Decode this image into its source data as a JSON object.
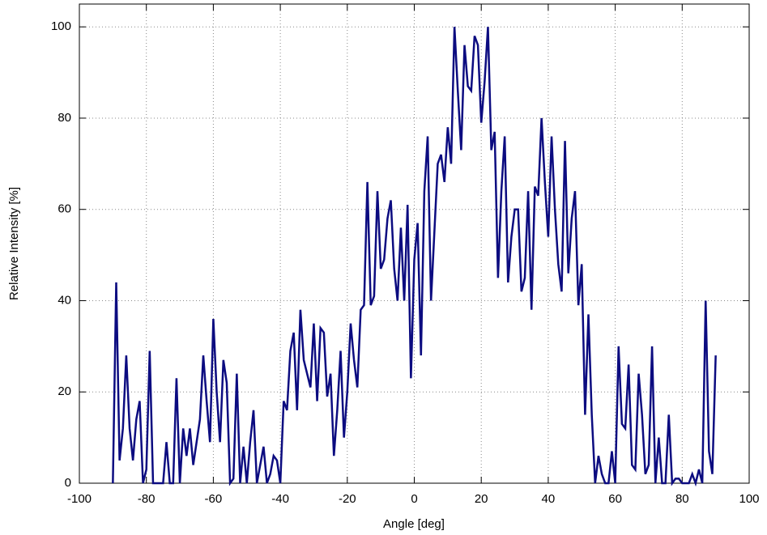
{
  "chart_data": {
    "type": "line",
    "x_label": "Angle [deg]",
    "y_label": "Relative Intensity [%]",
    "x": [
      -90,
      -89,
      -88,
      -87,
      -86,
      -85,
      -84,
      -83,
      -82,
      -81,
      -80,
      -79,
      -78,
      -77,
      -76,
      -75,
      -74,
      -73,
      -72,
      -71,
      -70,
      -69,
      -68,
      -67,
      -66,
      -65,
      -64,
      -63,
      -62,
      -61,
      -60,
      -59,
      -58,
      -57,
      -56,
      -55,
      -54,
      -53,
      -52,
      -51,
      -50,
      -49,
      -48,
      -47,
      -46,
      -45,
      -44,
      -43,
      -42,
      -41,
      -40,
      -39,
      -38,
      -37,
      -36,
      -35,
      -34,
      -33,
      -32,
      -31,
      -30,
      -29,
      -28,
      -27,
      -26,
      -25,
      -24,
      -23,
      -22,
      -21,
      -20,
      -19,
      -18,
      -17,
      -16,
      -15,
      -14,
      -13,
      -12,
      -11,
      -10,
      -9,
      -8,
      -7,
      -6,
      -5,
      -4,
      -3,
      -2,
      -1,
      0,
      1,
      2,
      3,
      4,
      5,
      6,
      7,
      8,
      9,
      10,
      11,
      12,
      13,
      14,
      15,
      16,
      17,
      18,
      19,
      20,
      21,
      22,
      23,
      24,
      25,
      26,
      27,
      28,
      29,
      30,
      31,
      32,
      33,
      34,
      35,
      36,
      37,
      38,
      39,
      40,
      41,
      42,
      43,
      44,
      45,
      46,
      47,
      48,
      49,
      50,
      51,
      52,
      53,
      54,
      55,
      56,
      57,
      58,
      59,
      60,
      61,
      62,
      63,
      64,
      65,
      66,
      67,
      68,
      69,
      70,
      71,
      72,
      73,
      74,
      75,
      76,
      77,
      78,
      79,
      80,
      81,
      82,
      83,
      84,
      85,
      86,
      87,
      88,
      89,
      90
    ],
    "series": [
      {
        "color": "#0c0c80",
        "values": [
          0,
          44,
          5,
          12,
          28,
          12,
          5,
          14,
          18,
          0,
          3,
          29,
          0,
          0,
          0,
          0,
          9,
          0,
          0,
          23,
          0,
          12,
          6,
          12,
          4,
          9,
          14,
          28,
          18,
          9,
          36,
          20,
          9,
          27,
          22,
          0,
          1,
          24,
          0,
          8,
          0,
          9,
          16,
          0,
          4,
          8,
          0,
          2,
          6,
          5,
          0,
          18,
          16,
          29,
          33,
          16,
          38,
          27,
          24,
          21,
          35,
          18,
          34,
          33,
          19,
          24,
          6,
          16,
          29,
          10,
          20,
          35,
          27,
          21,
          38,
          39,
          66,
          39,
          41,
          64,
          47,
          49,
          58,
          62,
          47,
          40,
          56,
          40,
          61,
          23,
          49,
          57,
          28,
          64,
          76,
          40,
          55,
          70,
          72,
          66,
          78,
          70,
          100,
          86,
          73,
          96,
          87,
          86,
          98,
          96,
          79,
          88,
          100,
          73,
          77,
          45,
          64,
          76,
          44,
          54,
          60,
          60,
          42,
          45,
          64,
          38,
          65,
          63,
          80,
          66,
          54,
          76,
          60,
          48,
          42,
          75,
          46,
          58,
          64,
          39,
          48,
          15,
          37,
          15,
          0,
          6,
          2,
          0,
          0,
          7,
          0,
          30,
          13,
          12,
          26,
          4,
          3,
          24,
          15,
          2,
          4,
          30,
          0,
          10,
          0,
          0,
          15,
          0,
          1,
          1,
          0,
          0,
          0,
          2,
          0,
          3,
          0,
          40,
          7,
          2,
          28
        ]
      }
    ],
    "xlim": [
      -100,
      100
    ],
    "xticks": [
      -100,
      -80,
      -60,
      -40,
      -20,
      0,
      20,
      40,
      60,
      80,
      100
    ],
    "ylim": [
      0,
      105
    ],
    "yticks": [
      0,
      20,
      40,
      60,
      80,
      100
    ],
    "grid": true
  }
}
